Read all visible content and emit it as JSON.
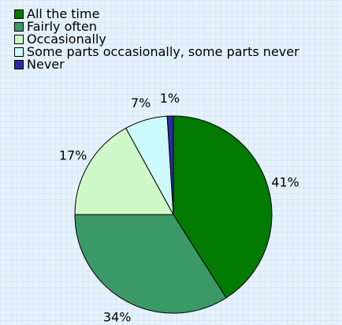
{
  "chart_data": {
    "type": "pie",
    "title": "",
    "legend_position": "top-left",
    "start_angle_deg": 0,
    "direction": "clockwise",
    "slices": [
      {
        "label": "All the time",
        "value": 41,
        "value_label": "41%",
        "color": "#007a00"
      },
      {
        "label": "Fairly often",
        "value": 34,
        "value_label": "34%",
        "color": "#3a9966"
      },
      {
        "label": "Occasionally",
        "value": 17,
        "value_label": "17%",
        "color": "#d0f7c8"
      },
      {
        "label": "Some parts occasionally, some parts never",
        "value": 7,
        "value_label": "7%",
        "color": "#ccf9fc"
      },
      {
        "label": "Never",
        "value": 1,
        "value_label": "1%",
        "color": "#2e2aa0"
      }
    ]
  }
}
